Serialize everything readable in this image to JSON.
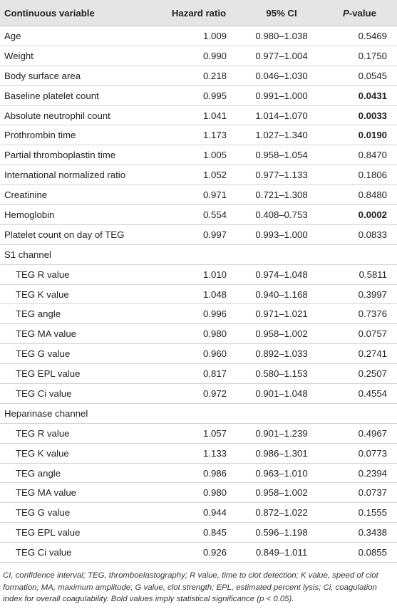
{
  "header": {
    "variable": "Continuous variable",
    "hazard_ratio": "Hazard ratio",
    "ci": "95% CI",
    "p_value_letter": "P",
    "p_value_suffix": "-value"
  },
  "main_rows": [
    {
      "label": "Age",
      "hr": "1.009",
      "ci": "0.980–1.038",
      "p": "0.5469",
      "sig": false
    },
    {
      "label": "Weight",
      "hr": "0.990",
      "ci": "0.977–1.004",
      "p": "0.1750",
      "sig": false
    },
    {
      "label": "Body surface area",
      "hr": "0.218",
      "ci": "0.046–1.030",
      "p": "0.0545",
      "sig": false
    },
    {
      "label": "Baseline platelet count",
      "hr": "0.995",
      "ci": "0.991–1.000",
      "p": "0.0431",
      "sig": true
    },
    {
      "label": "Absolute neutrophil count",
      "hr": "1.041",
      "ci": "1.014–1.070",
      "p": "0.0033",
      "sig": true
    },
    {
      "label": "Prothrombin time",
      "hr": "1.173",
      "ci": "1.027–1.340",
      "p": "0.0190",
      "sig": true
    },
    {
      "label": "Partial thromboplastin time",
      "hr": "1.005",
      "ci": "0.958–1.054",
      "p": "0.8470",
      "sig": false
    },
    {
      "label": "International normalized ratio",
      "hr": "1.052",
      "ci": "0.977–1.133",
      "p": "0.1806",
      "sig": false
    },
    {
      "label": "Creatinine",
      "hr": "0.971",
      "ci": "0.721–1.308",
      "p": "0.8480",
      "sig": false
    },
    {
      "label": "Hemoglobin",
      "hr": "0.554",
      "ci": "0.408–0.753",
      "p": "0.0002",
      "sig": true
    },
    {
      "label": "Platelet count on day of TEG",
      "hr": "0.997",
      "ci": "0.993–1.000",
      "p": "0.0833",
      "sig": false
    }
  ],
  "s1_channel": {
    "title": "S1 channel",
    "rows": [
      {
        "label": "TEG R value",
        "hr": "1.010",
        "ci": "0.974–1.048",
        "p": "0.5811",
        "sig": false
      },
      {
        "label": "TEG K value",
        "hr": "1.048",
        "ci": "0.940–1.168",
        "p": "0.3997",
        "sig": false
      },
      {
        "label": "TEG angle",
        "hr": "0.996",
        "ci": "0.971–1.021",
        "p": "0.7376",
        "sig": false
      },
      {
        "label": "TEG MA value",
        "hr": "0.980",
        "ci": "0.958–1.002",
        "p": "0.0757",
        "sig": false
      },
      {
        "label": "TEG G value",
        "hr": "0.960",
        "ci": "0.892–1.033",
        "p": "0.2741",
        "sig": false
      },
      {
        "label": "TEG EPL value",
        "hr": "0.817",
        "ci": "0.580–1.153",
        "p": "0.2507",
        "sig": false
      },
      {
        "label": "TEG Ci value",
        "hr": "0.972",
        "ci": "0.901–1.048",
        "p": "0.4554",
        "sig": false
      }
    ]
  },
  "heparinase_channel": {
    "title": "Heparinase channel",
    "rows": [
      {
        "label": "TEG R value",
        "hr": "1.057",
        "ci": "0.901–1.239",
        "p": "0.4967",
        "sig": false
      },
      {
        "label": "TEG K value",
        "hr": "1.133",
        "ci": "0.986–1.301",
        "p": "0.0773",
        "sig": false
      },
      {
        "label": "TEG angle",
        "hr": "0.986",
        "ci": "0.963–1.010",
        "p": "0.2394",
        "sig": false
      },
      {
        "label": "TEG MA value",
        "hr": "0.980",
        "ci": "0.958–1.002",
        "p": "0.0737",
        "sig": false
      },
      {
        "label": "TEG G value",
        "hr": "0.944",
        "ci": "0.872–1.022",
        "p": "0.1555",
        "sig": false
      },
      {
        "label": "TEG EPL value",
        "hr": "0.845",
        "ci": "0.596–1.198",
        "p": "0.3438",
        "sig": false
      },
      {
        "label": "TEG Ci value",
        "hr": "0.926",
        "ci": "0.849–1.011",
        "p": "0.0855",
        "sig": false
      }
    ]
  },
  "footnote": "CI, confidence interval; TEG, thromboelastography; R value, time to clot detection; K value, speed of clot formation; MA, maximum amplitude; G value, clot strength; EPL, estimated percent lysis; Ci, coagulation index for overall coagulability. Bold values imply statistical significance (p < 0.05)."
}
